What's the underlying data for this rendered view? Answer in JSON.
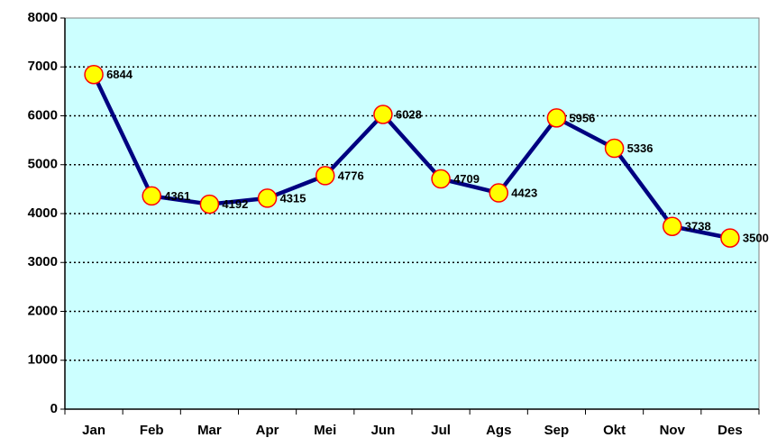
{
  "chart_data": {
    "type": "line",
    "categories": [
      "Jan",
      "Feb",
      "Mar",
      "Apr",
      "Mei",
      "Jun",
      "Jul",
      "Ags",
      "Sep",
      "Okt",
      "Nov",
      "Des"
    ],
    "values": [
      6844,
      4361,
      4192,
      4315,
      4776,
      6028,
      4709,
      4423,
      5956,
      5336,
      3738,
      3500
    ],
    "color": "#000080",
    "marker_color": "#ffff00",
    "marker_edge": "#ff0000",
    "background": "#ccffff",
    "ylim": [
      0,
      8000
    ],
    "yticks": [
      0,
      1000,
      2000,
      3000,
      4000,
      5000,
      6000,
      7000,
      8000
    ],
    "grid": true
  }
}
